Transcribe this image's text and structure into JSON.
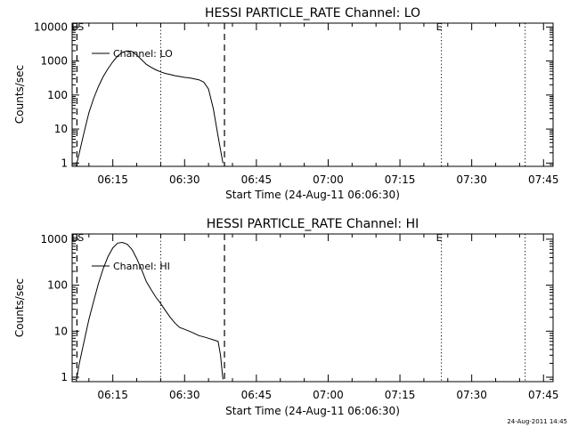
{
  "footer_timestamp": "24-Aug-2011 14:45",
  "chart_data": [
    {
      "type": "line",
      "title": "HESSI PARTICLE_RATE Channel: LO",
      "ylabel": "Counts/sec",
      "xlabel": "Start Time (24-Aug-11 06:06:30)",
      "y_scale": "log",
      "ylim": [
        0.8,
        13000
      ],
      "xlim": [
        "06:06:30",
        "07:47:00"
      ],
      "y_ticks": [
        1,
        10,
        100,
        1000,
        10000
      ],
      "y_tick_labels": [
        "1",
        "10",
        "100",
        "1000",
        "10000"
      ],
      "x_ticks": [
        "06:15",
        "06:30",
        "06:45",
        "07:00",
        "07:15",
        "07:30",
        "07:45"
      ],
      "x_tick_labels": [
        "06:15",
        "06:30",
        "06:45",
        "07:00",
        "07:15",
        "07:30",
        "07:45"
      ],
      "grid": false,
      "legend": {
        "position": "top-left",
        "entries": [
          "Channel: LO"
        ]
      },
      "markers": [
        {
          "label": "ES",
          "time": "06:07:30",
          "style": "dashed"
        },
        {
          "label": "",
          "time": "06:25:00",
          "style": "dotted"
        },
        {
          "label": "",
          "time": "06:38:20",
          "style": "dashed"
        },
        {
          "label": "E",
          "time": "07:23:40",
          "style": "dotted"
        },
        {
          "label": "",
          "time": "07:41:10",
          "style": "dotted"
        }
      ],
      "series": [
        {
          "name": "Channel: LO",
          "x": [
            "06:07:20",
            "06:08:00",
            "06:09:00",
            "06:10:00",
            "06:11:00",
            "06:12:00",
            "06:13:00",
            "06:14:00",
            "06:15:00",
            "06:16:00",
            "06:17:00",
            "06:18:00",
            "06:19:00",
            "06:20:00",
            "06:21:00",
            "06:22:00",
            "06:23:00",
            "06:24:00",
            "06:25:00",
            "06:26:00",
            "06:27:00",
            "06:28:00",
            "06:29:00",
            "06:30:00",
            "06:31:00",
            "06:32:00",
            "06:33:00",
            "06:34:00",
            "06:35:00",
            "06:36:00",
            "06:37:00",
            "06:38:00"
          ],
          "values": [
            0.8,
            2,
            8,
            30,
            80,
            180,
            350,
            600,
            950,
            1400,
            1800,
            2000,
            1900,
            1500,
            1100,
            800,
            650,
            550,
            480,
            430,
            400,
            370,
            350,
            330,
            320,
            300,
            280,
            240,
            150,
            40,
            6,
            1
          ]
        }
      ]
    },
    {
      "type": "line",
      "title": "HESSI PARTICLE_RATE Channel: HI",
      "ylabel": "Counts/sec",
      "xlabel": "Start Time (24-Aug-11 06:06:30)",
      "y_scale": "log",
      "ylim": [
        0.8,
        1300
      ],
      "xlim": [
        "06:06:30",
        "07:47:00"
      ],
      "y_ticks": [
        1,
        10,
        100,
        1000
      ],
      "y_tick_labels": [
        "1",
        "10",
        "100",
        "1000"
      ],
      "x_ticks": [
        "06:15",
        "06:30",
        "06:45",
        "07:00",
        "07:15",
        "07:30",
        "07:45"
      ],
      "x_tick_labels": [
        "06:15",
        "06:30",
        "06:45",
        "07:00",
        "07:15",
        "07:30",
        "07:45"
      ],
      "grid": false,
      "legend": {
        "position": "top-left",
        "entries": [
          "Channel: HI"
        ]
      },
      "markers": [
        {
          "label": "ES",
          "time": "06:07:30",
          "style": "dashed"
        },
        {
          "label": "",
          "time": "06:25:00",
          "style": "dotted"
        },
        {
          "label": "",
          "time": "06:38:20",
          "style": "dashed"
        },
        {
          "label": "E",
          "time": "07:23:40",
          "style": "dotted"
        },
        {
          "label": "",
          "time": "07:41:10",
          "style": "dotted"
        }
      ],
      "series": [
        {
          "name": "Channel: HI",
          "x": [
            "06:07:20",
            "06:08:00",
            "06:09:00",
            "06:10:00",
            "06:11:00",
            "06:12:00",
            "06:13:00",
            "06:14:00",
            "06:15:00",
            "06:16:00",
            "06:17:00",
            "06:18:00",
            "06:19:00",
            "06:20:00",
            "06:21:00",
            "06:22:00",
            "06:23:00",
            "06:24:00",
            "06:25:00",
            "06:26:00",
            "06:27:00",
            "06:28:00",
            "06:29:00",
            "06:30:00",
            "06:31:00",
            "06:32:00",
            "06:33:00",
            "06:34:00",
            "06:35:00",
            "06:36:00",
            "06:37:00",
            "06:37:30",
            "06:38:00"
          ],
          "values": [
            0.8,
            2,
            6,
            18,
            45,
            110,
            230,
            420,
            650,
            820,
            850,
            780,
            600,
            380,
            220,
            120,
            80,
            55,
            40,
            28,
            20,
            15,
            12,
            11,
            10,
            9,
            8,
            7.5,
            7,
            6.5,
            6,
            3,
            0.9
          ]
        }
      ]
    }
  ]
}
